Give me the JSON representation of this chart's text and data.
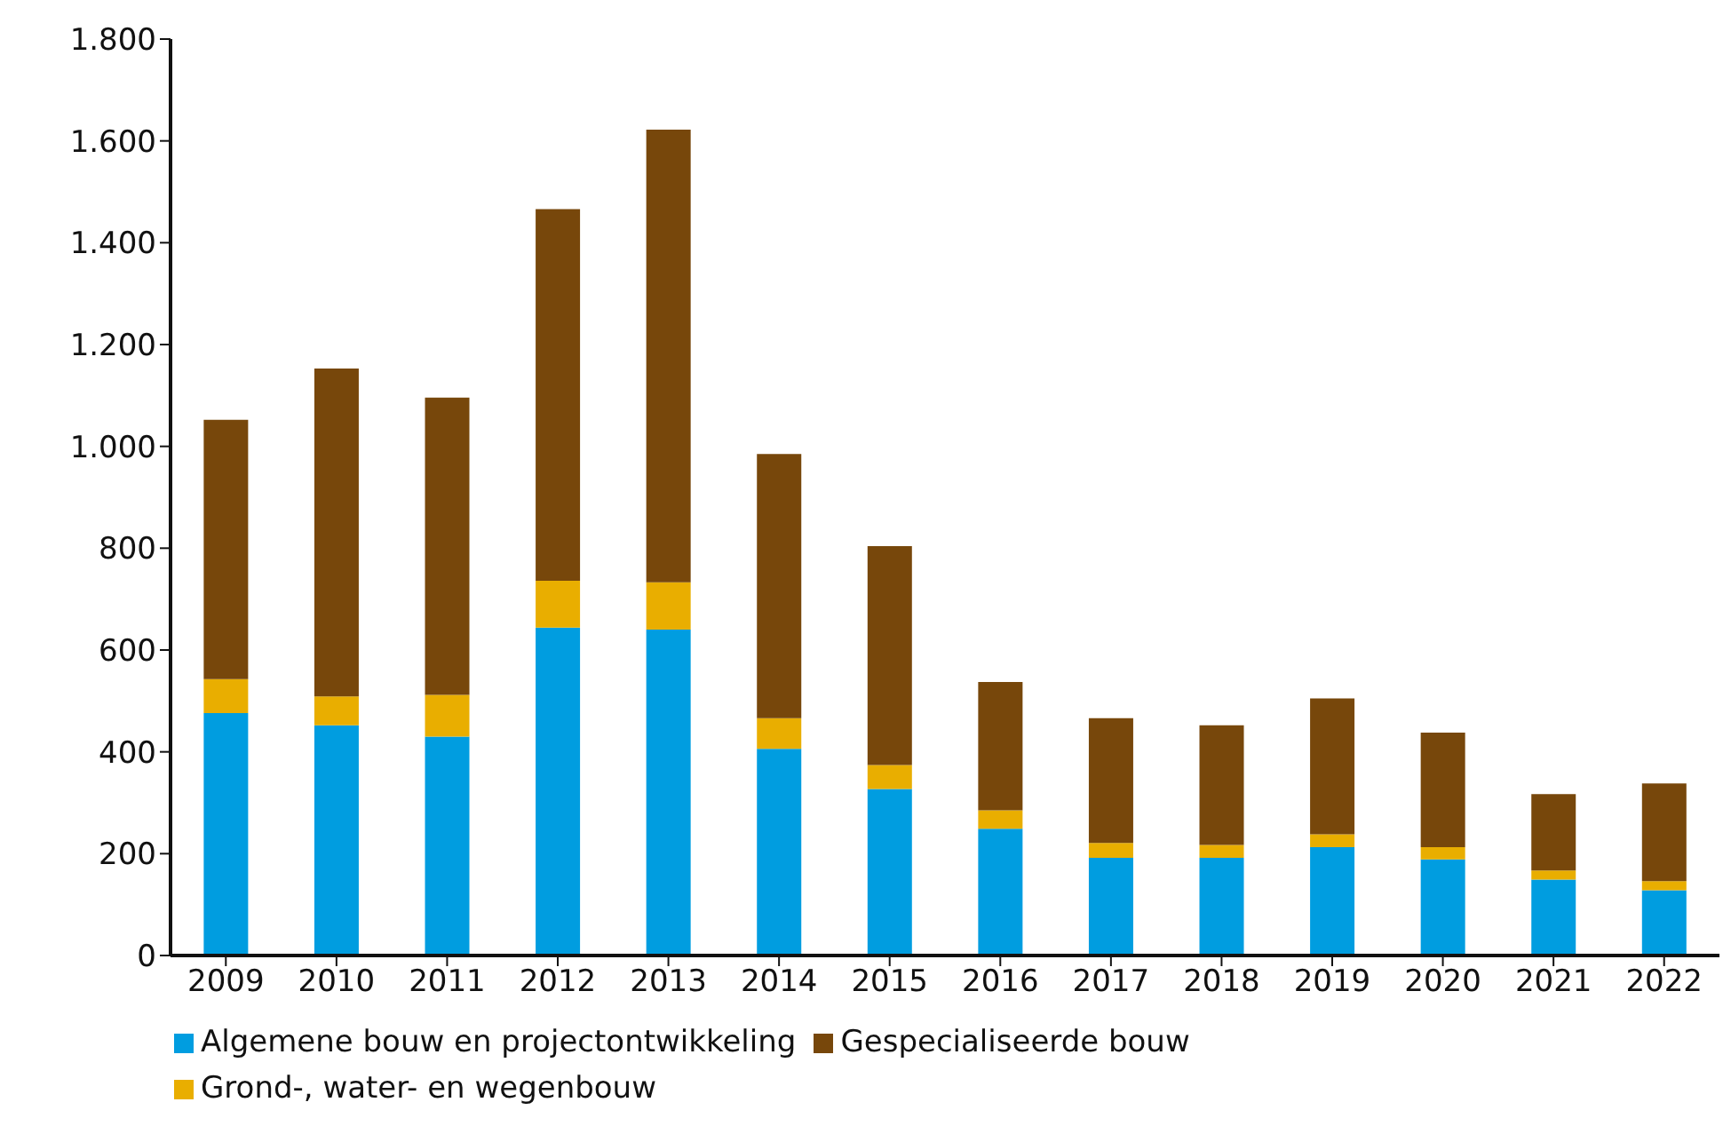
{
  "chart_data": {
    "type": "bar",
    "stacked": true,
    "categories": [
      "2009",
      "2010",
      "2011",
      "2012",
      "2013",
      "2014",
      "2015",
      "2016",
      "2017",
      "2018",
      "2019",
      "2020",
      "2021",
      "2022"
    ],
    "series": [
      {
        "name": "Algemene bouw en projectontwikkeling",
        "color": "#009de0",
        "values": [
          476,
          452,
          430,
          644,
          640,
          406,
          327,
          249,
          192,
          192,
          213,
          189,
          149,
          128
        ]
      },
      {
        "name": "Grond-, water-  en wegenbouw",
        "color": "#e9ae00",
        "values": [
          67,
          57,
          82,
          92,
          93,
          60,
          47,
          36,
          29,
          25,
          25,
          24,
          18,
          18
        ]
      },
      {
        "name": "Gespecialiseerde bouw",
        "color": "#77470b",
        "values": [
          509,
          644,
          584,
          730,
          889,
          519,
          430,
          252,
          245,
          235,
          267,
          225,
          150,
          192
        ]
      }
    ],
    "ylim": [
      0,
      1800
    ],
    "yticks": [
      {
        "value": 0,
        "label": "0"
      },
      {
        "value": 200,
        "label": "200"
      },
      {
        "value": 400,
        "label": "400"
      },
      {
        "value": 600,
        "label": "600"
      },
      {
        "value": 800,
        "label": "800"
      },
      {
        "value": 1000,
        "label": "1.000"
      },
      {
        "value": 1200,
        "label": "1.200"
      },
      {
        "value": 1400,
        "label": "1.400"
      },
      {
        "value": 1600,
        "label": "1.600"
      },
      {
        "value": 1800,
        "label": "1.800"
      }
    ],
    "grid": false,
    "legend": "bottom"
  }
}
